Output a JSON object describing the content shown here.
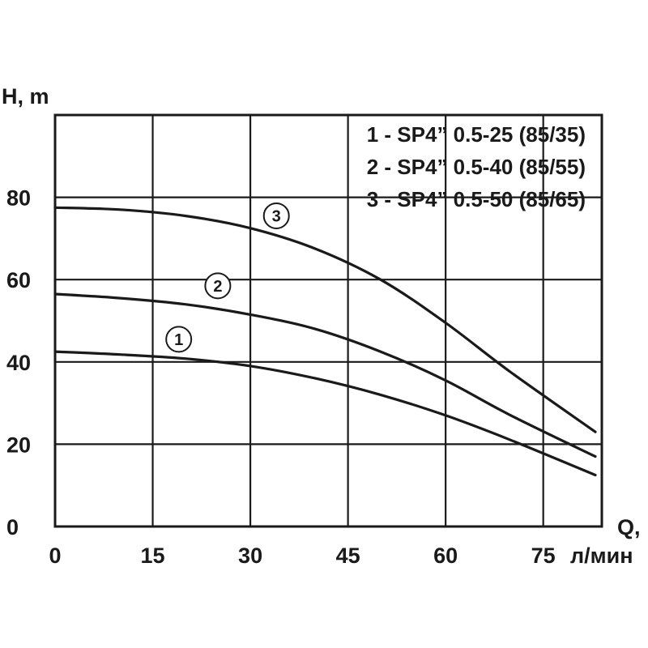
{
  "chart_data": {
    "type": "line",
    "xlabel_line1": "Q,",
    "xlabel_line2": "л/мин",
    "ylabel": "H, m",
    "xlim": [
      0,
      84
    ],
    "ylim": [
      0,
      100
    ],
    "x_ticks": [
      "0",
      "15",
      "30",
      "45",
      "60",
      "75"
    ],
    "x_tick_values": [
      0,
      15,
      30,
      45,
      60,
      75
    ],
    "y_ticks": [
      "0",
      "20",
      "40",
      "60",
      "80"
    ],
    "y_tick_values": [
      0,
      20,
      40,
      60,
      80
    ],
    "grid": true,
    "legend_position": "top-right",
    "legend": [
      "1 - SP4” 0.5-25 (85/35)",
      "2 - SP4” 0.5-40 (85/55)",
      "3 - SP4” 0.5-50 (85/65)"
    ],
    "series": [
      {
        "marker": "1",
        "marker_at": [
          19,
          45.5
        ],
        "x": [
          0,
          10,
          20,
          30,
          40,
          50,
          60,
          70,
          83
        ],
        "y": [
          42.5,
          41.8,
          40.8,
          39,
          36,
          32,
          27,
          21,
          12.5
        ]
      },
      {
        "marker": "2",
        "marker_at": [
          25,
          58.5
        ],
        "x": [
          0,
          10,
          20,
          30,
          40,
          50,
          60,
          70,
          83
        ],
        "y": [
          56.5,
          55.5,
          54,
          51.5,
          48,
          42.5,
          35.5,
          27,
          17
        ]
      },
      {
        "marker": "3",
        "marker_at": [
          34,
          75.5
        ],
        "x": [
          0,
          10,
          20,
          30,
          40,
          50,
          60,
          70,
          83
        ],
        "y": [
          77.5,
          77,
          75.5,
          72.5,
          67.5,
          60,
          49.5,
          37.5,
          23
        ]
      }
    ]
  }
}
